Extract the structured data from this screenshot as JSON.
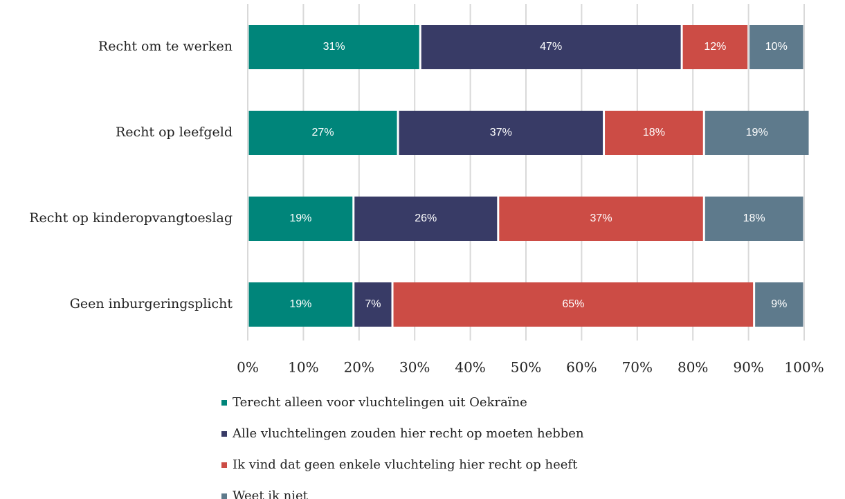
{
  "chart_data": {
    "type": "bar",
    "orientation": "horizontal",
    "stacked": true,
    "categories": [
      "Recht om te werken",
      "Recht op leefgeld",
      "Recht op kinderopvangtoeslag",
      "Geen inburgeringsplicht"
    ],
    "series": [
      {
        "name": "Terecht alleen voor vluchtelingen uit Oekraïne",
        "color": "#00857a",
        "values": [
          31,
          27,
          19,
          19
        ],
        "value_labels": [
          "31%",
          "27%",
          "19%",
          "19%"
        ]
      },
      {
        "name": "Alle vluchtelingen zouden hier recht op moeten hebben",
        "color": "#383b66",
        "values": [
          47,
          37,
          26,
          7
        ],
        "value_labels": [
          "47%",
          "37%",
          "26%",
          "7%"
        ]
      },
      {
        "name": "Ik vind dat geen enkele vluchteling hier recht op heeft",
        "color": "#cc4c45",
        "values": [
          12,
          18,
          37,
          65
        ],
        "value_labels": [
          "12%",
          "18%",
          "37%",
          "65%"
        ]
      },
      {
        "name": "Weet ik niet",
        "color": "#5e7a8c",
        "values": [
          10,
          19,
          18,
          9
        ],
        "value_labels": [
          "10%",
          "19%",
          "18%",
          "9%"
        ]
      }
    ],
    "xlim": [
      0,
      100
    ],
    "xticks": [
      {
        "value": 0,
        "label": "0%"
      },
      {
        "value": 10,
        "label": "10%"
      },
      {
        "value": 20,
        "label": "20%"
      },
      {
        "value": 30,
        "label": "30%"
      },
      {
        "value": 40,
        "label": "40%"
      },
      {
        "value": 50,
        "label": "50%"
      },
      {
        "value": 60,
        "label": "60%"
      },
      {
        "value": 70,
        "label": "70%"
      },
      {
        "value": 80,
        "label": "80%"
      },
      {
        "value": 90,
        "label": "90%"
      },
      {
        "value": 100,
        "label": "100%"
      }
    ],
    "grid": true,
    "legend": "bottom"
  }
}
